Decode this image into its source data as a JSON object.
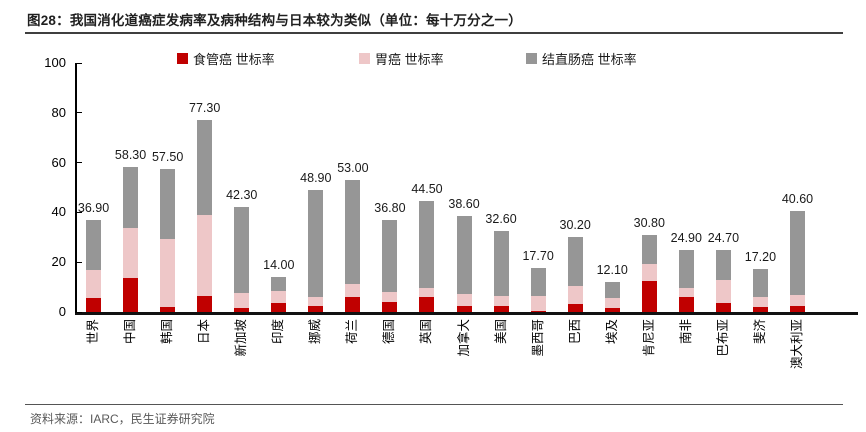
{
  "header": {
    "title": "图28：我国消化道癌症发病率及病种结构与日本较为类似（单位：每十万分之一）"
  },
  "chart_data": {
    "type": "bar",
    "stacked": true,
    "title": "我国消化道癌症发病率及病种结构与日本较为类似",
    "unit": "每十万分之一",
    "categories": [
      "世界",
      "中国",
      "韩国",
      "日本",
      "新加坡",
      "印度",
      "挪威",
      "荷兰",
      "德国",
      "英国",
      "加拿大",
      "美国",
      "墨西哥",
      "巴西",
      "埃及",
      "肯尼亚",
      "南非",
      "巴布亚",
      "斐济",
      "澳大利亚"
    ],
    "series": [
      {
        "name": "食管癌 世标率",
        "color": "#C00000",
        "values": [
          5.8,
          13.5,
          2.0,
          6.3,
          1.5,
          3.8,
          2.4,
          6.0,
          3.9,
          6.2,
          2.5,
          2.3,
          0.5,
          3.3,
          1.5,
          12.5,
          6.2,
          3.5,
          2.1,
          2.4
        ]
      },
      {
        "name": "胃癌 世标率",
        "color": "#EEC7C8",
        "values": [
          11.2,
          20.4,
          27.4,
          32.7,
          6.0,
          4.7,
          3.6,
          5.3,
          4.3,
          3.6,
          4.6,
          4.2,
          5.9,
          7.2,
          4.0,
          6.8,
          3.5,
          9.4,
          3.8,
          4.4
        ]
      },
      {
        "name": "结直肠癌 世标率",
        "color": "#969696",
        "values": [
          19.9,
          24.4,
          28.1,
          38.3,
          34.8,
          5.5,
          42.9,
          41.7,
          28.6,
          34.7,
          31.5,
          26.1,
          11.3,
          19.7,
          6.6,
          11.5,
          15.2,
          11.8,
          11.3,
          33.8
        ]
      }
    ],
    "totals": [
      36.9,
      58.3,
      57.5,
      77.3,
      42.3,
      14.0,
      48.9,
      53.0,
      36.8,
      44.5,
      38.6,
      32.6,
      17.7,
      30.2,
      12.1,
      30.8,
      24.9,
      24.7,
      17.2,
      40.6
    ],
    "total_labels": [
      "36.90",
      "58.30",
      "57.50",
      "77.30",
      "42.30",
      "14.00",
      "48.90",
      "53.00",
      "36.80",
      "44.50",
      "38.60",
      "32.60",
      "17.70",
      "30.20",
      "12.10",
      "30.80",
      "24.90",
      "24.70",
      "17.20",
      "40.60"
    ],
    "ylim": [
      0,
      100
    ],
    "yticks": [
      0,
      20,
      40,
      60,
      80,
      100
    ],
    "grid": false,
    "legend_position": "top"
  },
  "footer": {
    "source": "资料来源：IARC，民生证券研究院"
  }
}
